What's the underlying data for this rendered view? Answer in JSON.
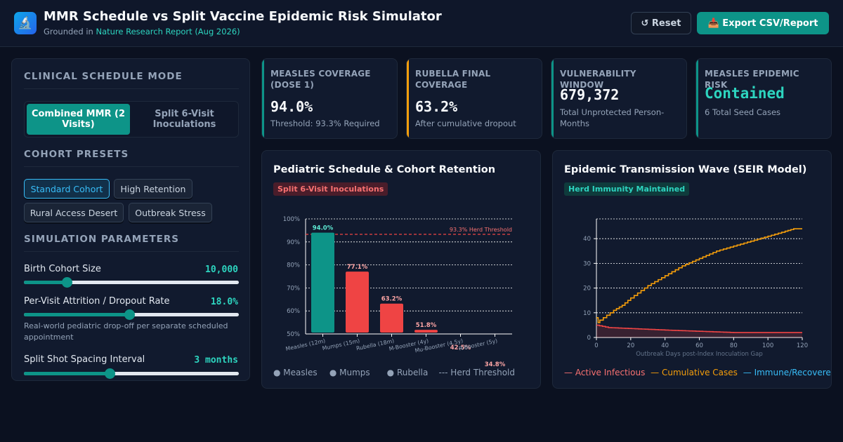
{
  "header": {
    "logo_icon": "🔬",
    "title": "MMR Schedule vs Split Vaccine Epidemic Risk Simulator",
    "subtitle_prefix": "Grounded in",
    "subtitle_link": "Nature Research Report (Aug 2026)",
    "reset_label": "↺ Reset",
    "export_label": "📥 Export CSV/Report"
  },
  "sidebar": {
    "mode_title": "CLINICAL SCHEDULE MODE",
    "modes": [
      {
        "label": "Combined MMR (2 Visits)",
        "active": true
      },
      {
        "label": "Split 6-Visit Inoculations",
        "active": false
      }
    ],
    "presets_title": "COHORT PRESETS",
    "presets": [
      {
        "label": "Standard Cohort",
        "active": true
      },
      {
        "label": "High Retention",
        "active": false
      },
      {
        "label": "Rural Access Desert",
        "active": false
      },
      {
        "label": "Outbreak Stress",
        "active": false
      }
    ],
    "params_title": "SIMULATION PARAMETERS",
    "params": [
      {
        "label": "Birth Cohort Size",
        "value": "10,000",
        "fraction": 0.2,
        "description": ""
      },
      {
        "label": "Per-Visit Attrition / Dropout Rate",
        "value": "18.0%",
        "fraction": 0.49,
        "description": "Real-world pediatric drop-off per separate scheduled appointment"
      },
      {
        "label": "Split Shot Spacing Interval",
        "value": "3 months",
        "fraction": 0.4,
        "description": ""
      }
    ]
  },
  "cards": [
    {
      "label": "MEASLES COVERAGE (DOSE 1)",
      "value": "94.0%",
      "sub": "Threshold: 93.3% Required",
      "color": "#0d9488"
    },
    {
      "label": "RUBELLA FINAL COVERAGE",
      "value": "63.2%",
      "sub": "After cumulative dropout",
      "color": "#f59e0b"
    },
    {
      "label": "VULNERABILITY WINDOW",
      "value": "679,372",
      "sub": "Total Unprotected Person-Months",
      "color": "#0d9488"
    },
    {
      "label": "MEASLES EPIDEMIC RISK",
      "value": "Contained",
      "sub": "6 Total Seed Cases",
      "color": "#0d9488"
    }
  ],
  "schedule_panel": {
    "title": "Pediatric Schedule & Cohort Retention",
    "badge": "Split 6-Visit Inoculations",
    "legend": [
      {
        "label": "● Measles",
        "color": "#94a3b8"
      },
      {
        "label": "● Mumps",
        "color": "#94a3b8"
      },
      {
        "label": "● Rubella",
        "color": "#94a3b8"
      },
      {
        "label": "--- Herd Threshold",
        "color": "#94a3b8"
      }
    ]
  },
  "epidemic_panel": {
    "title": "Epidemic Transmission Wave (SEIR Model)",
    "badge": "Herd Immunity Maintained",
    "legend": [
      {
        "label": "— Active Infectious",
        "color": "#f87171"
      },
      {
        "label": "— Cumulative Cases",
        "color": "#f59e0b"
      },
      {
        "label": "— Immune/Recovered",
        "color": "#38bdf8"
      }
    ]
  },
  "chart_data": [
    {
      "type": "bar",
      "categories": [
        "Measles (12m)",
        "Mumps (15m)",
        "Rubella (18m)",
        "M-Booster (4y)",
        "Mu-Booster (4.5y)",
        "R-Booster (5y)"
      ],
      "values": [
        94.0,
        77.1,
        63.2,
        51.8,
        42.5,
        34.8
      ],
      "data_labels": [
        "94.0%",
        "77.1%",
        "63.2%",
        "51.8%",
        "42.5%",
        "34.8%"
      ],
      "bar_colors": [
        "#0d9488",
        "#ef4444",
        "#ef4444",
        "#ef4444",
        "#ef4444",
        "#ef4444"
      ],
      "label_colors": [
        "#5eead4",
        "#fca5a5",
        "#fca5a5",
        "#fca5a5",
        "#fca5a5",
        "#fca5a5"
      ],
      "ylim": [
        50,
        100
      ],
      "yticks": [
        50,
        60,
        70,
        80,
        90,
        100
      ],
      "ytick_labels": [
        "50%",
        "60%",
        "70%",
        "80%",
        "90%",
        "100%"
      ],
      "threshold": 93.3,
      "threshold_label": "93.3% Herd Threshold",
      "grid": true
    },
    {
      "type": "line",
      "xlabel": "Outbreak Days post-Index Inoculation Gap",
      "xlim": [
        0,
        120
      ],
      "ylim": [
        0,
        48
      ],
      "xticks": [
        0,
        20,
        40,
        60,
        80,
        100,
        120
      ],
      "yticks": [
        0,
        10,
        20,
        30,
        40
      ],
      "grid": true,
      "series": [
        {
          "name": "Cumulative Cases",
          "color": "#f59e0b",
          "step": true,
          "x": [
            0,
            1,
            2,
            4,
            6,
            8,
            10,
            15,
            20,
            30,
            40,
            50,
            60,
            70,
            80,
            90,
            100,
            110,
            115,
            120
          ],
          "y": [
            8,
            6,
            7,
            8,
            9,
            10,
            11,
            13,
            16,
            21,
            25,
            29,
            32,
            35,
            37,
            39,
            41,
            43,
            44,
            44
          ]
        },
        {
          "name": "Active Infectious",
          "color": "#ef4444",
          "step": true,
          "fill": true,
          "x": [
            0,
            7,
            40,
            80,
            120
          ],
          "y": [
            5,
            4,
            3,
            2,
            2
          ]
        }
      ]
    }
  ]
}
